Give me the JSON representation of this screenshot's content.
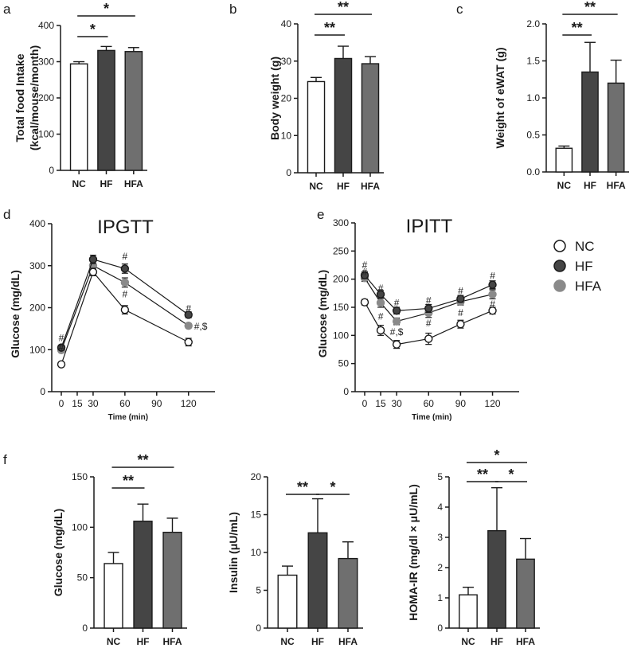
{
  "chart_data": [
    {
      "id": "a",
      "type": "bar",
      "panel": "a",
      "categories": [
        "NC",
        "HF",
        "HFA"
      ],
      "values": [
        294,
        331,
        328
      ],
      "errors": [
        6,
        11,
        11
      ],
      "ylabel_lines": [
        "Total food Intake",
        "(kcal/mouse/month)"
      ],
      "yticks": [
        0,
        100,
        200,
        300,
        400
      ],
      "ylim": [
        0,
        400
      ],
      "fills": [
        "#ffffff",
        "#454545",
        "#6f6f6f"
      ],
      "sig": [
        {
          "from": 0,
          "to": 1,
          "label": "*"
        },
        {
          "from": 0,
          "to": 2,
          "label": "*"
        }
      ]
    },
    {
      "id": "b",
      "type": "bar",
      "panel": "b",
      "categories": [
        "NC",
        "HF",
        "HFA"
      ],
      "values": [
        24.5,
        30.7,
        29.3
      ],
      "errors": [
        1.1,
        3.3,
        1.9
      ],
      "ylabel_lines": [
        "Body weight (g)"
      ],
      "yticks": [
        0,
        10,
        20,
        30,
        40
      ],
      "ylim": [
        0,
        40
      ],
      "fills": [
        "#ffffff",
        "#454545",
        "#6f6f6f"
      ],
      "sig": [
        {
          "from": 0,
          "to": 1,
          "label": "**"
        },
        {
          "from": 0,
          "to": 2,
          "label": "**"
        }
      ]
    },
    {
      "id": "c",
      "type": "bar",
      "panel": "c",
      "categories": [
        "NC",
        "HF",
        "HFA"
      ],
      "values": [
        0.32,
        1.35,
        1.2
      ],
      "errors": [
        0.03,
        0.4,
        0.31
      ],
      "ylabel_lines": [
        "Weight of eWAT (g)"
      ],
      "yticks": [
        0.0,
        0.5,
        1.0,
        1.5,
        2.0
      ],
      "yticklabels": [
        "0.0",
        "0.5",
        "1.0",
        "1.5",
        "2.0"
      ],
      "ylim": [
        0,
        2.0
      ],
      "fills": [
        "#ffffff",
        "#454545",
        "#6f6f6f"
      ],
      "sig": [
        {
          "from": 0,
          "to": 1,
          "label": "**"
        },
        {
          "from": 0,
          "to": 2,
          "label": "**"
        }
      ]
    },
    {
      "id": "d",
      "type": "line",
      "panel": "d",
      "title": "IPGTT",
      "xlabel": "Time (min)",
      "ylabel": "Glucose (mg/dL)",
      "x": [
        0,
        30,
        60,
        120
      ],
      "xticks": [
        0,
        15,
        30,
        60,
        90,
        120
      ],
      "yticks": [
        0,
        100,
        200,
        300,
        400
      ],
      "ylim": [
        0,
        400
      ],
      "series": [
        {
          "name": "NC",
          "values": [
            65,
            285,
            195,
            118
          ],
          "errors": [
            4,
            9,
            10,
            9
          ],
          "fill": "#ffffff"
        },
        {
          "name": "HF",
          "values": [
            105,
            315,
            293,
            183
          ],
          "errors": [
            5,
            10,
            11,
            7
          ],
          "fill": "#454545"
        },
        {
          "name": "HFA",
          "values": [
            99,
            300,
            260,
            157
          ],
          "errors": [
            4,
            9,
            11,
            5
          ],
          "fill": "#8a8a8a"
        }
      ],
      "annotations": [
        {
          "x": 0,
          "y": 128,
          "text": "#"
        },
        {
          "x": 0,
          "y": 106,
          "text": "#"
        },
        {
          "x": 60,
          "y": 322,
          "text": "#"
        },
        {
          "x": 60,
          "y": 232,
          "text": "#"
        },
        {
          "x": 120,
          "y": 198,
          "text": "#"
        },
        {
          "x": 120,
          "y": 155,
          "text": "#,$",
          "side": "right"
        }
      ]
    },
    {
      "id": "e",
      "type": "line",
      "panel": "e",
      "title": "IPITT",
      "xlabel": "Time (min)",
      "ylabel": "Glucose (mg/dL)",
      "x": [
        0,
        15,
        30,
        60,
        90,
        120
      ],
      "xticks": [
        0,
        15,
        30,
        60,
        90,
        120
      ],
      "yticks": [
        0,
        50,
        100,
        150,
        200,
        250,
        300
      ],
      "ylim": [
        0,
        300
      ],
      "series": [
        {
          "name": "NC",
          "values": [
            159,
            109,
            84,
            94,
            120,
            144
          ],
          "errors": [
            5,
            9,
            7,
            10,
            7,
            6
          ],
          "fill": "#ffffff"
        },
        {
          "name": "HF",
          "values": [
            207,
            173,
            144,
            148,
            165,
            190
          ],
          "errors": [
            6,
            7,
            6,
            7,
            6,
            7
          ],
          "fill": "#454545"
        },
        {
          "name": "HFA",
          "values": [
            202,
            158,
            125,
            140,
            160,
            173
          ],
          "errors": [
            6,
            8,
            6,
            8,
            6,
            8
          ],
          "fill": "#8a8a8a"
        }
      ],
      "annotations": [
        {
          "x": 0,
          "y": 225,
          "text": "#"
        },
        {
          "x": 0,
          "y": 213,
          "text": "#"
        },
        {
          "x": 15,
          "y": 184,
          "text": "#"
        },
        {
          "x": 15,
          "y": 134,
          "text": "#"
        },
        {
          "x": 30,
          "y": 158,
          "text": "#"
        },
        {
          "x": 30,
          "y": 106,
          "text": "#,$"
        },
        {
          "x": 60,
          "y": 162,
          "text": "#"
        },
        {
          "x": 60,
          "y": 122,
          "text": "#"
        },
        {
          "x": 90,
          "y": 179,
          "text": "#"
        },
        {
          "x": 90,
          "y": 140,
          "text": "#"
        },
        {
          "x": 120,
          "y": 206,
          "text": "#"
        },
        {
          "x": 120,
          "y": 156,
          "text": "#"
        }
      ],
      "legend": [
        "NC",
        "HF",
        "HFA"
      ]
    },
    {
      "id": "f1",
      "type": "bar",
      "panel": "f",
      "categories": [
        "NC",
        "HF",
        "HFA"
      ],
      "values": [
        64,
        106,
        95
      ],
      "errors": [
        11,
        17,
        14
      ],
      "ylabel_lines": [
        "Glucose (mg/dL)"
      ],
      "yticks": [
        0,
        50,
        100,
        150
      ],
      "ylim": [
        0,
        150
      ],
      "fills": [
        "#ffffff",
        "#454545",
        "#6f6f6f"
      ],
      "sig": [
        {
          "from": 0,
          "to": 1,
          "label": "**"
        },
        {
          "from": 0,
          "to": 2,
          "label": "**"
        }
      ]
    },
    {
      "id": "f2",
      "type": "bar",
      "panel": "",
      "categories": [
        "NC",
        "HF",
        "HFA"
      ],
      "values": [
        7.0,
        12.6,
        9.2
      ],
      "errors": [
        1.2,
        4.5,
        2.2
      ],
      "ylabel_lines": [
        "Insulin (μU/mL)"
      ],
      "yticks": [
        0,
        5,
        10,
        15,
        20
      ],
      "ylim": [
        0,
        20
      ],
      "fills": [
        "#ffffff",
        "#454545",
        "#6f6f6f"
      ],
      "sig": [
        {
          "from": 0,
          "to": 1,
          "label": "**"
        },
        {
          "from": 1,
          "to": 2,
          "label": "*"
        }
      ]
    },
    {
      "id": "f3",
      "type": "bar",
      "panel": "",
      "categories": [
        "NC",
        "HF",
        "HFA"
      ],
      "values": [
        1.1,
        3.22,
        2.28
      ],
      "errors": [
        0.25,
        1.42,
        0.68
      ],
      "ylabel_lines": [
        "HOMA-IR (mg/dl × μU/mL)"
      ],
      "yticks": [
        0,
        1,
        2,
        3,
        4,
        5
      ],
      "ylim": [
        0,
        5
      ],
      "fills": [
        "#ffffff",
        "#454545",
        "#6f6f6f"
      ],
      "sig": [
        {
          "from": 0,
          "to": 1,
          "label": "**"
        },
        {
          "from": 1,
          "to": 2,
          "label": "*"
        },
        {
          "from": 0,
          "to": 2,
          "label": "*"
        }
      ]
    }
  ]
}
